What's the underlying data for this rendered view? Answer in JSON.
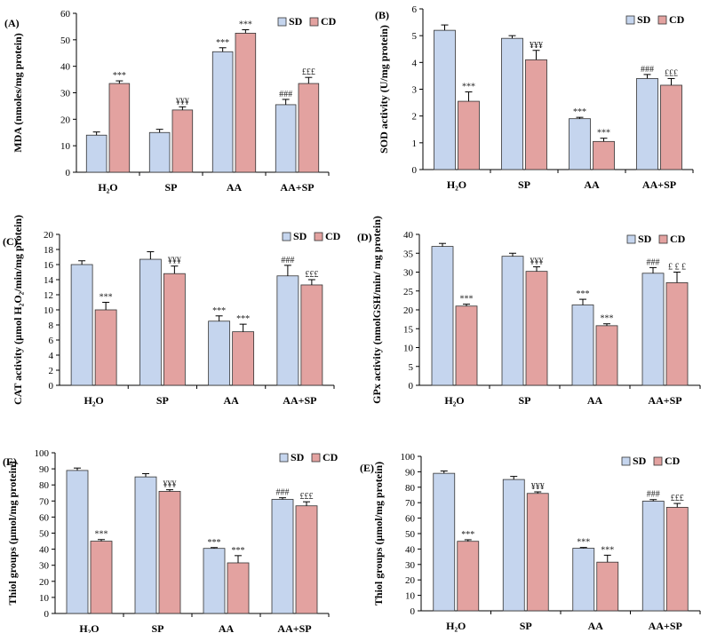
{
  "colors": {
    "sd": "#c5d5ee",
    "cd": "#e3a2a0",
    "outline": "#333333"
  },
  "legend": {
    "sd": "SD",
    "cd": "CD"
  },
  "chart_data": [
    {
      "panel": "(A)",
      "type": "bar",
      "ylabel": "MDA (nmoles/mg protein)",
      "ylim": [
        0,
        60
      ],
      "yticks": [
        0,
        10,
        20,
        30,
        40,
        50,
        60
      ],
      "categories": [
        "H₂O",
        "SP",
        "AA",
        "AA+SP"
      ],
      "series": [
        {
          "name": "SD",
          "values": [
            14,
            15,
            45.5,
            25.5
          ],
          "errors": [
            1.2,
            1.2,
            1.5,
            2
          ],
          "annotations": [
            "",
            "",
            "***",
            "###"
          ]
        },
        {
          "name": "CD",
          "values": [
            33.5,
            23.5,
            52.5,
            33.5
          ],
          "errors": [
            1,
            1.2,
            1.3,
            2.3
          ],
          "annotations": [
            "***",
            "¥¥¥",
            "***",
            "£££"
          ]
        }
      ]
    },
    {
      "panel": "(B)",
      "type": "bar",
      "ylabel": "SOD activity (U/mg protein)",
      "ylim": [
        0,
        6
      ],
      "yticks": [
        0,
        1,
        2,
        3,
        4,
        5,
        6
      ],
      "categories": [
        "H₂O",
        "SP",
        "AA",
        "AA+SP"
      ],
      "series": [
        {
          "name": "SD",
          "values": [
            5.2,
            4.9,
            1.9,
            3.4
          ],
          "errors": [
            0.2,
            0.1,
            0.05,
            0.15
          ],
          "annotations": [
            "",
            "",
            "***",
            "###"
          ]
        },
        {
          "name": "CD",
          "values": [
            2.55,
            4.1,
            1.05,
            3.15
          ],
          "errors": [
            0.35,
            0.35,
            0.12,
            0.25
          ],
          "annotations": [
            "***",
            "¥¥¥",
            "***",
            "£££"
          ]
        }
      ]
    },
    {
      "panel": "(C)",
      "type": "bar",
      "ylabel": "CAT activity (µmol H₂O₂/min/mg protein)",
      "ylim": [
        0,
        20
      ],
      "yticks": [
        0,
        2,
        4,
        6,
        8,
        10,
        12,
        14,
        16,
        18,
        20
      ],
      "categories": [
        "H₂O",
        "SP",
        "AA",
        "AA+SP"
      ],
      "series": [
        {
          "name": "SD",
          "values": [
            16,
            16.7,
            8.5,
            14.5
          ],
          "errors": [
            0.5,
            1,
            0.7,
            1.4
          ],
          "annotations": [
            "",
            "",
            "***",
            "###"
          ]
        },
        {
          "name": "CD",
          "values": [
            10,
            14.8,
            7.1,
            13.3
          ],
          "errors": [
            1,
            1,
            1,
            0.7
          ],
          "annotations": [
            "***",
            "¥¥¥",
            "***",
            "£££"
          ]
        }
      ]
    },
    {
      "panel": "(D)",
      "type": "bar",
      "ylabel": "GPx activity (nmolGSH/min/ mg protein)",
      "ylim": [
        0,
        40
      ],
      "yticks": [
        0,
        5,
        10,
        15,
        20,
        25,
        30,
        35,
        40
      ],
      "categories": [
        "H₂O",
        "SP",
        "AA",
        "AA+SP"
      ],
      "series": [
        {
          "name": "SD",
          "values": [
            36.8,
            34.2,
            21.3,
            29.7
          ],
          "errors": [
            0.8,
            0.8,
            1.5,
            1.5
          ],
          "annotations": [
            "",
            "",
            "***",
            "###"
          ]
        },
        {
          "name": "CD",
          "values": [
            21,
            30.2,
            15.8,
            27.2
          ],
          "errors": [
            0.5,
            1.2,
            0.5,
            2.8
          ],
          "annotations": [
            "***",
            "¥¥¥",
            "***",
            "£ £ £"
          ]
        }
      ]
    },
    {
      "panel": "(E)",
      "type": "bar",
      "ylabel": "Thiol groups (µmol/mg protein)",
      "ylim": [
        0,
        100
      ],
      "yticks": [
        0,
        10,
        20,
        30,
        40,
        50,
        60,
        70,
        80,
        90,
        100
      ],
      "categories": [
        "H₂O",
        "SP",
        "AA",
        "AA+SP"
      ],
      "series": [
        {
          "name": "SD",
          "values": [
            89,
            85,
            40.5,
            71
          ],
          "errors": [
            1.5,
            2,
            0.5,
            1
          ],
          "annotations": [
            "",
            "",
            "***",
            "###"
          ]
        },
        {
          "name": "CD",
          "values": [
            45,
            76,
            31.5,
            67
          ],
          "errors": [
            1,
            1,
            4.5,
            2.5
          ],
          "annotations": [
            "***",
            "¥¥¥",
            "***",
            "£££"
          ]
        }
      ]
    },
    {
      "panel": "(E)",
      "type": "bar",
      "ylabel": "Thiol groups (µmol/mg protein)",
      "ylim": [
        0,
        100
      ],
      "yticks": [
        0,
        10,
        20,
        30,
        40,
        50,
        60,
        70,
        80,
        90,
        100
      ],
      "categories": [
        "H₂O",
        "SP",
        "AA",
        "AA+SP"
      ],
      "series": [
        {
          "name": "SD",
          "values": [
            89,
            85,
            40.5,
            71
          ],
          "errors": [
            1.5,
            2,
            0.5,
            1
          ],
          "annotations": [
            "",
            "",
            "***",
            "###"
          ]
        },
        {
          "name": "CD",
          "values": [
            45,
            76,
            31.5,
            67
          ],
          "errors": [
            1,
            1,
            4.5,
            2.5
          ],
          "annotations": [
            "***",
            "¥¥¥",
            "***",
            "£££"
          ]
        }
      ]
    }
  ]
}
